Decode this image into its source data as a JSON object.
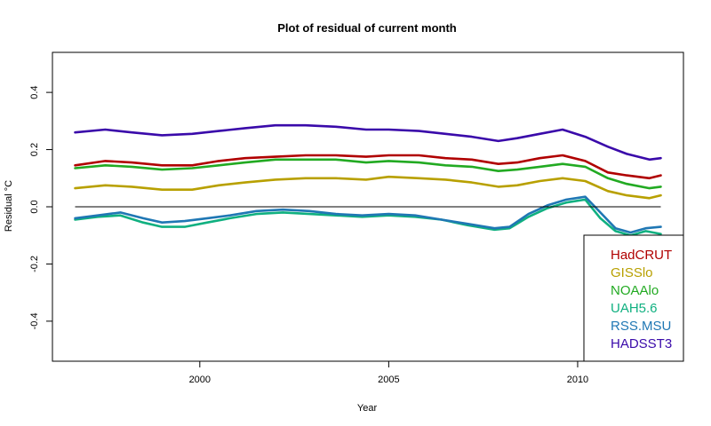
{
  "chart_data": {
    "type": "line",
    "title": "Plot of residual of current month",
    "xlabel": "Year",
    "ylabel": "Residual °C",
    "xlim": [
      1996.1,
      2012.8
    ],
    "ylim": [
      -0.54,
      0.54
    ],
    "x_ticks": [
      2000,
      2005,
      2010
    ],
    "x_tick_labels": [
      "2000",
      "2005",
      "2010"
    ],
    "y_ticks": [
      -0.4,
      -0.2,
      0.0,
      0.2,
      0.4
    ],
    "y_tick_labels": [
      "-0.4",
      "-0.2",
      "0.0",
      "0.2",
      "0.4"
    ],
    "reference_line": 0.0,
    "legend_position": "bottom-right",
    "grid": false,
    "series": [
      {
        "name": "HadCRUT",
        "color": "#b00000",
        "x": [
          1996.7,
          1997.5,
          1998.2,
          1999.0,
          1999.8,
          2000.5,
          2001.2,
          2002.0,
          2002.8,
          2003.6,
          2004.4,
          2005.0,
          2005.8,
          2006.5,
          2007.2,
          2007.9,
          2008.4,
          2009.0,
          2009.6,
          2010.2,
          2010.8,
          2011.3,
          2011.9,
          2012.2
        ],
        "y": [
          0.145,
          0.16,
          0.155,
          0.145,
          0.145,
          0.16,
          0.17,
          0.175,
          0.18,
          0.18,
          0.175,
          0.18,
          0.18,
          0.17,
          0.165,
          0.15,
          0.155,
          0.17,
          0.18,
          0.16,
          0.12,
          0.11,
          0.1,
          0.11
        ]
      },
      {
        "name": "GISSlo",
        "color": "#b8a000",
        "x": [
          1996.7,
          1997.5,
          1998.2,
          1999.0,
          1999.8,
          2000.5,
          2001.2,
          2002.0,
          2002.8,
          2003.6,
          2004.4,
          2005.0,
          2005.8,
          2006.5,
          2007.2,
          2007.9,
          2008.4,
          2009.0,
          2009.6,
          2010.2,
          2010.8,
          2011.3,
          2011.9,
          2012.2
        ],
        "y": [
          0.065,
          0.075,
          0.07,
          0.06,
          0.06,
          0.075,
          0.085,
          0.095,
          0.1,
          0.1,
          0.095,
          0.105,
          0.1,
          0.095,
          0.085,
          0.07,
          0.075,
          0.09,
          0.1,
          0.09,
          0.055,
          0.04,
          0.03,
          0.04
        ]
      },
      {
        "name": "NOAAlo",
        "color": "#22aa22",
        "x": [
          1996.7,
          1997.5,
          1998.2,
          1999.0,
          1999.8,
          2000.5,
          2001.2,
          2002.0,
          2002.8,
          2003.6,
          2004.4,
          2005.0,
          2005.8,
          2006.5,
          2007.2,
          2007.9,
          2008.4,
          2009.0,
          2009.6,
          2010.2,
          2010.8,
          2011.3,
          2011.9,
          2012.2
        ],
        "y": [
          0.135,
          0.145,
          0.14,
          0.13,
          0.135,
          0.145,
          0.155,
          0.165,
          0.165,
          0.165,
          0.155,
          0.16,
          0.155,
          0.145,
          0.14,
          0.125,
          0.13,
          0.14,
          0.15,
          0.14,
          0.1,
          0.08,
          0.065,
          0.07
        ]
      },
      {
        "name": "UAH5.6",
        "color": "#10b080",
        "x": [
          1996.7,
          1997.3,
          1997.9,
          1998.5,
          1999.0,
          1999.6,
          2000.2,
          2000.8,
          2001.5,
          2002.2,
          2002.9,
          2003.6,
          2004.3,
          2005.0,
          2005.7,
          2006.4,
          2007.1,
          2007.8,
          2008.2,
          2008.7,
          2009.2,
          2009.7,
          2010.2,
          2010.6,
          2011.0,
          2011.4,
          2011.8,
          2012.2
        ],
        "y": [
          -0.045,
          -0.035,
          -0.03,
          -0.055,
          -0.07,
          -0.07,
          -0.055,
          -0.04,
          -0.025,
          -0.02,
          -0.025,
          -0.03,
          -0.035,
          -0.03,
          -0.035,
          -0.045,
          -0.065,
          -0.08,
          -0.075,
          -0.035,
          -0.005,
          0.015,
          0.025,
          -0.04,
          -0.085,
          -0.1,
          -0.085,
          -0.095
        ]
      },
      {
        "name": "RSS.MSU",
        "color": "#1f77b4",
        "x": [
          1996.7,
          1997.3,
          1997.9,
          1998.5,
          1999.0,
          1999.6,
          2000.2,
          2000.8,
          2001.5,
          2002.2,
          2002.9,
          2003.6,
          2004.3,
          2005.0,
          2005.7,
          2006.4,
          2007.1,
          2007.8,
          2008.2,
          2008.7,
          2009.2,
          2009.7,
          2010.2,
          2010.6,
          2011.0,
          2011.4,
          2011.8,
          2012.2
        ],
        "y": [
          -0.04,
          -0.03,
          -0.02,
          -0.04,
          -0.055,
          -0.05,
          -0.04,
          -0.03,
          -0.015,
          -0.01,
          -0.015,
          -0.025,
          -0.03,
          -0.025,
          -0.03,
          -0.045,
          -0.06,
          -0.075,
          -0.07,
          -0.025,
          0.005,
          0.025,
          0.035,
          -0.02,
          -0.075,
          -0.09,
          -0.075,
          -0.07
        ]
      },
      {
        "name": "HADSST3",
        "color": "#3a0aaa",
        "x": [
          1996.7,
          1997.5,
          1998.2,
          1999.0,
          1999.8,
          2000.5,
          2001.2,
          2002.0,
          2002.8,
          2003.6,
          2004.4,
          2005.0,
          2005.8,
          2006.5,
          2007.2,
          2007.9,
          2008.4,
          2009.0,
          2009.6,
          2010.2,
          2010.8,
          2011.3,
          2011.9,
          2012.2
        ],
        "y": [
          0.26,
          0.27,
          0.26,
          0.25,
          0.255,
          0.265,
          0.275,
          0.285,
          0.285,
          0.28,
          0.27,
          0.27,
          0.265,
          0.255,
          0.245,
          0.23,
          0.24,
          0.255,
          0.27,
          0.245,
          0.21,
          0.185,
          0.165,
          0.17
        ]
      }
    ]
  }
}
